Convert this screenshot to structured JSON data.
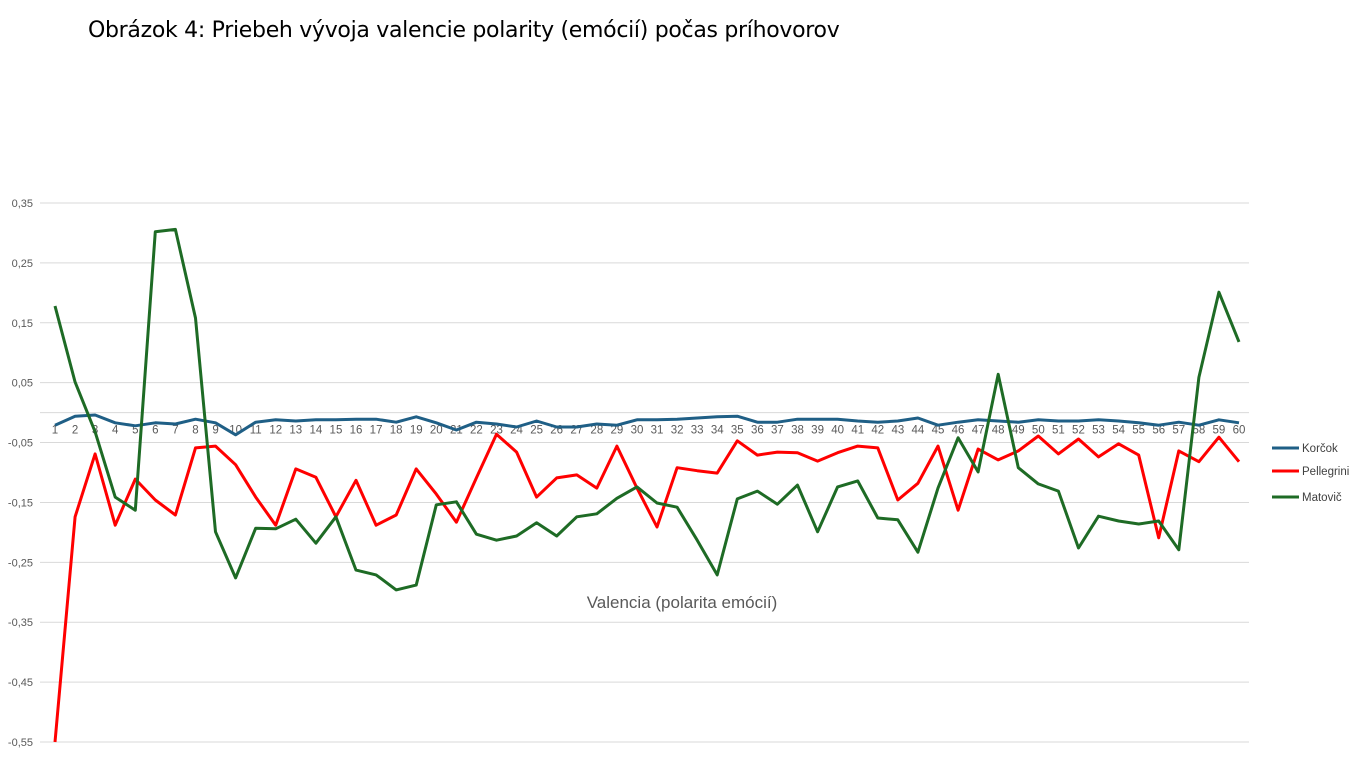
{
  "chart_data": {
    "type": "line",
    "title": "Obrázok 4: Priebeh vývoja valencie polarity (emócií) počas príhovorov",
    "xlabel": "Valencia (polarita emócií)",
    "ylabel": "",
    "ylim": [
      -0.55,
      0.35
    ],
    "yticks": [
      "-0,55",
      "-0,45",
      "-0,35",
      "-0,25",
      "-0,15",
      "-0,05",
      "0,05",
      "0,15",
      "0,25",
      "0,35"
    ],
    "ytick_values": [
      -0.55,
      -0.45,
      -0.35,
      -0.25,
      -0.15,
      -0.05,
      0.05,
      0.15,
      0.25,
      0.35
    ],
    "grid": true,
    "legend_position": "right",
    "categories": [
      1,
      2,
      3,
      4,
      5,
      6,
      7,
      8,
      9,
      10,
      11,
      12,
      13,
      14,
      15,
      16,
      17,
      18,
      19,
      20,
      21,
      22,
      23,
      24,
      25,
      26,
      27,
      28,
      29,
      30,
      31,
      32,
      33,
      34,
      35,
      36,
      37,
      38,
      39,
      40,
      41,
      42,
      43,
      44,
      45,
      46,
      47,
      48,
      49,
      50,
      51,
      52,
      53,
      54,
      55,
      56,
      57,
      58,
      59,
      60
    ],
    "series": [
      {
        "name": "Korčok",
        "color": "#1f5f86",
        "values": [
          -0.021,
          -0.006,
          -0.004,
          -0.017,
          -0.022,
          -0.017,
          -0.019,
          -0.011,
          -0.017,
          -0.037,
          -0.016,
          -0.012,
          -0.014,
          -0.012,
          -0.012,
          -0.011,
          -0.011,
          -0.016,
          -0.007,
          -0.017,
          -0.029,
          -0.016,
          -0.019,
          -0.024,
          -0.014,
          -0.024,
          -0.024,
          -0.019,
          -0.021,
          -0.012,
          -0.012,
          -0.011,
          -0.009,
          -0.007,
          -0.006,
          -0.016,
          -0.016,
          -0.011,
          -0.011,
          -0.011,
          -0.014,
          -0.016,
          -0.014,
          -0.009,
          -0.021,
          -0.016,
          -0.012,
          -0.014,
          -0.016,
          -0.012,
          -0.014,
          -0.014,
          -0.012,
          -0.014,
          -0.017,
          -0.021,
          -0.016,
          -0.021,
          -0.012,
          -0.017
        ]
      },
      {
        "name": "Pellegrini",
        "color": "#ff0000",
        "values": [
          -0.55,
          -0.174,
          -0.069,
          -0.188,
          -0.111,
          -0.146,
          -0.171,
          -0.059,
          -0.056,
          -0.087,
          -0.141,
          -0.188,
          -0.094,
          -0.108,
          -0.174,
          -0.113,
          -0.188,
          -0.171,
          -0.094,
          -0.136,
          -0.183,
          -0.109,
          -0.036,
          -0.066,
          -0.141,
          -0.109,
          -0.104,
          -0.126,
          -0.056,
          -0.126,
          -0.191,
          -0.092,
          -0.097,
          -0.101,
          -0.047,
          -0.071,
          -0.066,
          -0.067,
          -0.081,
          -0.067,
          -0.056,
          -0.059,
          -0.146,
          -0.118,
          -0.056,
          -0.163,
          -0.061,
          -0.079,
          -0.064,
          -0.039,
          -0.069,
          -0.044,
          -0.074,
          -0.052,
          -0.071,
          -0.209,
          -0.064,
          -0.082,
          -0.041,
          -0.082
        ]
      },
      {
        "name": "Matovič",
        "color": "#1e6b25",
        "values": [
          0.178,
          0.051,
          -0.032,
          -0.141,
          -0.163,
          0.302,
          0.306,
          0.158,
          -0.199,
          -0.276,
          -0.193,
          -0.194,
          -0.178,
          -0.218,
          -0.174,
          -0.263,
          -0.271,
          -0.296,
          -0.288,
          -0.154,
          -0.149,
          -0.203,
          -0.213,
          -0.206,
          -0.184,
          -0.206,
          -0.174,
          -0.169,
          -0.143,
          -0.124,
          -0.151,
          -0.158,
          -0.213,
          -0.271,
          -0.144,
          -0.131,
          -0.153,
          -0.121,
          -0.199,
          -0.124,
          -0.114,
          -0.176,
          -0.179,
          -0.233,
          -0.126,
          -0.042,
          -0.099,
          0.064,
          -0.092,
          -0.119,
          -0.131,
          -0.226,
          -0.173,
          -0.181,
          -0.186,
          -0.181,
          -0.229,
          0.059,
          0.201,
          0.118
        ]
      }
    ]
  }
}
